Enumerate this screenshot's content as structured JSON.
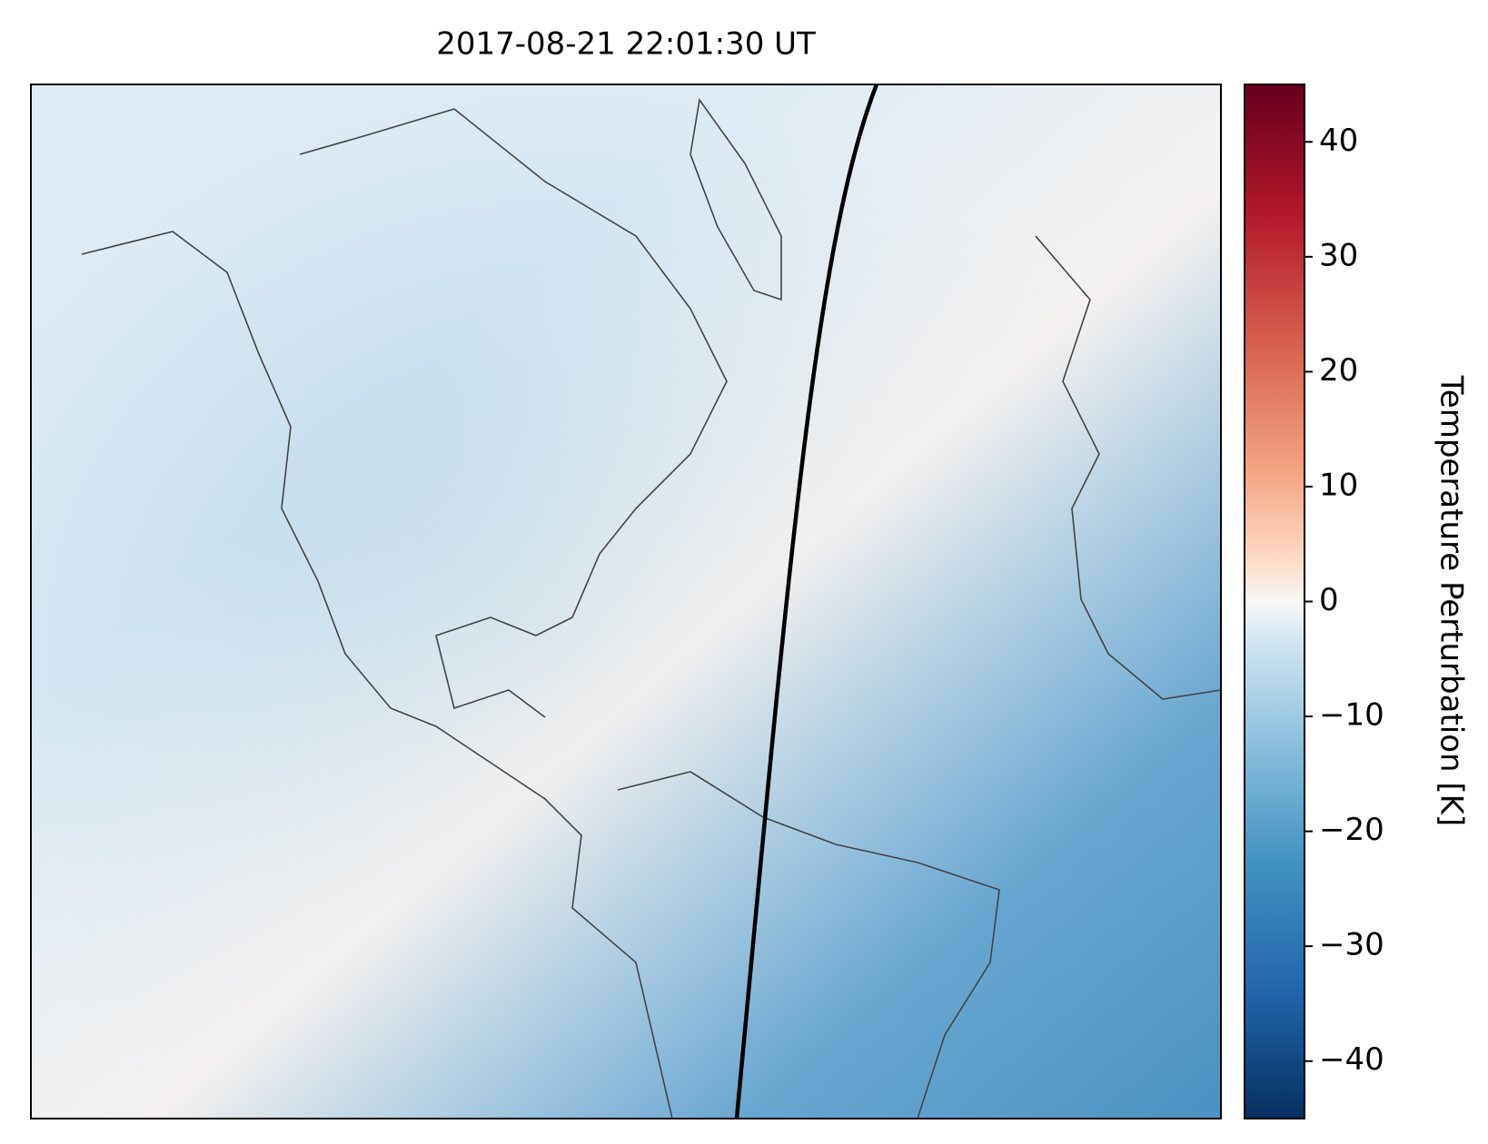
{
  "chart_data": {
    "type": "map",
    "title": "2017-08-21 22:01:30 UT",
    "colorbar": {
      "label": "Temperature Perturbation [K]",
      "lim": [
        -45,
        45
      ],
      "ticks": [
        {
          "value": -40,
          "label": "−40"
        },
        {
          "value": -30,
          "label": "−30"
        },
        {
          "value": -20,
          "label": "−20"
        },
        {
          "value": -10,
          "label": "−10"
        },
        0,
        10,
        20,
        30,
        40
      ]
    }
  }
}
